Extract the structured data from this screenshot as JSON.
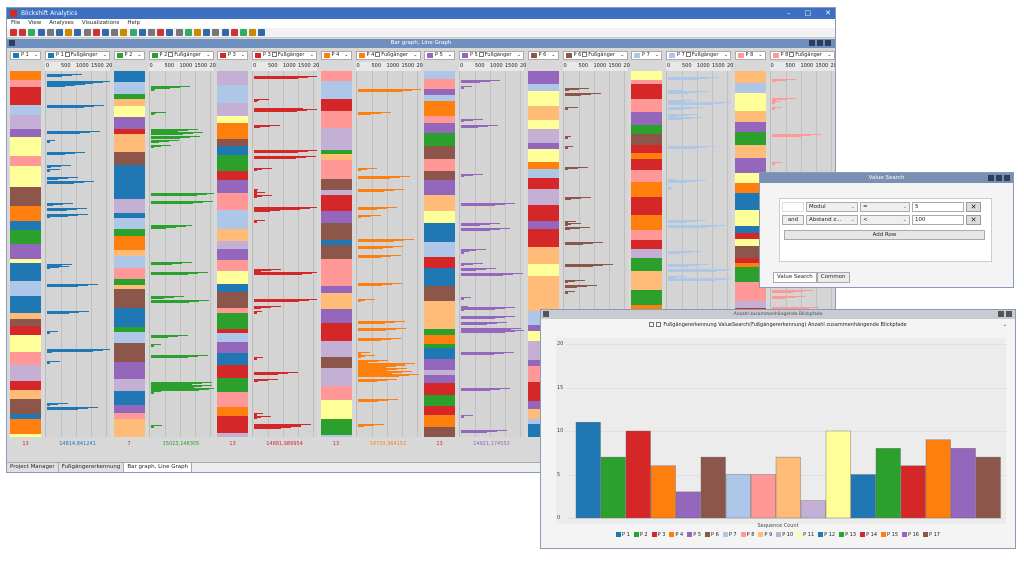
{
  "window": {
    "title": "Blickshift Analytics",
    "min": "–",
    "max": "□",
    "close": "✕"
  },
  "menu": [
    "File",
    "View",
    "Analyses",
    "Visualizations",
    "Help"
  ],
  "panel_title": "Bar graph, Line Graph",
  "columns": [
    {
      "label": "P 1",
      "color": "#1f77b4",
      "foot": "13",
      "line_label": "P 1",
      "line_foot": "14814,841241"
    },
    {
      "label": "P 2",
      "color": "#2ca02c",
      "foot": "7",
      "line_label": "P 2",
      "line_foot": "15023,148305"
    },
    {
      "label": "P 3",
      "color": "#d62728",
      "foot": "13",
      "line_label": "P 3",
      "line_foot": "14881,989954"
    },
    {
      "label": "P 4",
      "color": "#ff7f0e",
      "foot": "13",
      "line_label": "P 4",
      "line_foot": "14733,964152"
    },
    {
      "label": "P 5",
      "color": "#9467bd",
      "foot": "13",
      "line_label": "P 5",
      "line_foot": "14921,174552"
    },
    {
      "label": "P 6",
      "color": "#8c564b",
      "foot": "13",
      "line_label": "P 6",
      "line_foot": ""
    },
    {
      "label": "P 7",
      "color": "#aec7e8",
      "foot": "",
      "line_label": "P 7",
      "line_foot": ""
    },
    {
      "label": "P 8",
      "color": "#ff9896",
      "foot": "",
      "line_label": "P 8",
      "line_foot": ""
    }
  ],
  "line_checkbox_label": "Fußgänger",
  "axis_ticks": [
    "0",
    "500",
    "1000",
    "1500",
    "20"
  ],
  "tabs": [
    "Project Manager",
    "Fußgängererkennung",
    "Bar graph, Line Graph"
  ],
  "value_search": {
    "title": "Value Search",
    "rows": [
      {
        "connector": "",
        "field": "Modul",
        "op": "=",
        "value": "5"
      },
      {
        "connector": "and",
        "field": "Abstand z...",
        "op": "<",
        "value": "100"
      }
    ],
    "add_row": "Add Row",
    "remove_icon": "✕",
    "tabs": [
      "Value Search",
      "Common"
    ]
  },
  "bar_chart_window": {
    "title": "Anzahl zusammenhängende Blickpfade",
    "header": "Fußgängererkennung ValueSearch(Fußgängererkennung) Anzahl zusammenhängende Blickpfade"
  },
  "chart_data": {
    "type": "bar",
    "title": "",
    "xlabel": "Sequence Count",
    "ylabel": "",
    "ylim": [
      0,
      20
    ],
    "yticks": [
      "0",
      "5",
      "10",
      "15",
      "20"
    ],
    "categories": [
      "P 1",
      "P 2",
      "P 3",
      "P 4",
      "P 5",
      "P 6",
      "P 7",
      "P 8",
      "P 9",
      "P 10",
      "P 11",
      "P 12",
      "P 13",
      "P 14",
      "P 15",
      "P 16",
      "P 17"
    ],
    "values": [
      11,
      7,
      10,
      6,
      3,
      7,
      5,
      5,
      7,
      2,
      10,
      5,
      8,
      6,
      9,
      8,
      7
    ],
    "colors": [
      "#1f77b4",
      "#2ca02c",
      "#d62728",
      "#ff7f0e",
      "#9467bd",
      "#8c564b",
      "#aec7e8",
      "#ff9896",
      "#ffbb78",
      "#c5b0d5",
      "#ffff99",
      "#1f77b4",
      "#2ca02c",
      "#d62728",
      "#ff7f0e",
      "#9467bd",
      "#8c564b"
    ],
    "legend": "bottom"
  }
}
